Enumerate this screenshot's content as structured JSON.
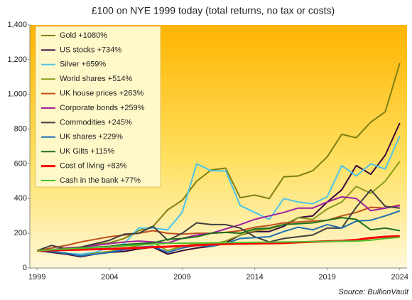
{
  "chart_data": {
    "type": "line",
    "title": "£100 on NYE 1999 today (total returns, no tax or costs)",
    "source": "Source: BullionVault",
    "x": [
      1999,
      2000,
      2001,
      2002,
      2003,
      2004,
      2005,
      2006,
      2007,
      2008,
      2009,
      2010,
      2011,
      2012,
      2013,
      2014,
      2015,
      2016,
      2017,
      2018,
      2019,
      2020,
      2021,
      2022,
      2023,
      2024
    ],
    "xlim": [
      1998.5,
      2024.5
    ],
    "xticks": [
      1999,
      2004,
      2009,
      2014,
      2019,
      2024
    ],
    "ylim": [
      0,
      1400
    ],
    "yticks": [
      0,
      200,
      400,
      600,
      800,
      {
        "value": 1000,
        "label": "1,000"
      },
      {
        "value": 1200,
        "label": "1,200"
      },
      {
        "value": 1400,
        "label": "1,400"
      }
    ],
    "legend": "upper left",
    "series": [
      {
        "name": "Gold +1080%",
        "color": "#7f7f10",
        "values": [
          100,
          100,
          105,
          115,
          135,
          145,
          170,
          215,
          240,
          335,
          390,
          500,
          565,
          575,
          405,
          420,
          400,
          525,
          530,
          560,
          640,
          770,
          750,
          840,
          900,
          1180
        ]
      },
      {
        "name": "US stocks +734%",
        "color": "#3a0a3a",
        "values": [
          100,
          90,
          80,
          65,
          80,
          90,
          95,
          110,
          120,
          80,
          100,
          115,
          125,
          145,
          190,
          210,
          210,
          240,
          290,
          300,
          380,
          450,
          590,
          540,
          650,
          835
        ]
      },
      {
        "name": "Silver +659%",
        "color": "#4ec3e8",
        "values": [
          100,
          95,
          85,
          80,
          90,
          120,
          140,
          230,
          230,
          220,
          320,
          600,
          560,
          560,
          360,
          320,
          280,
          400,
          380,
          370,
          410,
          590,
          530,
          600,
          570,
          760
        ]
      },
      {
        "name": "World shares +514%",
        "color": "#8a9a1e",
        "values": [
          100,
          95,
          85,
          70,
          85,
          95,
          110,
          130,
          145,
          100,
          125,
          140,
          135,
          155,
          190,
          215,
          225,
          250,
          290,
          280,
          340,
          380,
          470,
          430,
          500,
          614
        ]
      },
      {
        "name": "UK house prices +263%",
        "color": "#c0501e",
        "values": [
          100,
          115,
          130,
          150,
          165,
          180,
          190,
          200,
          215,
          200,
          195,
          200,
          200,
          205,
          215,
          235,
          245,
          260,
          265,
          270,
          275,
          300,
          320,
          350,
          345,
          363
        ]
      },
      {
        "name": "Corporate bonds +259%",
        "color": "#a020a0",
        "values": [
          100,
          105,
          115,
          120,
          130,
          140,
          150,
          155,
          150,
          145,
          170,
          190,
          200,
          225,
          250,
          280,
          300,
          320,
          345,
          345,
          380,
          410,
          400,
          330,
          345,
          359
        ]
      },
      {
        "name": "Commodities +245%",
        "color": "#404040",
        "values": [
          100,
          130,
          110,
          120,
          140,
          160,
          195,
          200,
          240,
          160,
          200,
          260,
          250,
          250,
          230,
          180,
          150,
          170,
          180,
          190,
          230,
          230,
          350,
          450,
          355,
          345
        ]
      },
      {
        "name": "UK shares +229%",
        "color": "#1f6fb4",
        "values": [
          100,
          95,
          85,
          70,
          80,
          90,
          105,
          120,
          125,
          90,
          115,
          130,
          125,
          140,
          170,
          175,
          180,
          210,
          235,
          220,
          250,
          230,
          270,
          275,
          300,
          329
        ]
      },
      {
        "name": "UK Gilts +115%",
        "color": "#1e6e1e",
        "values": [
          100,
          105,
          110,
          115,
          120,
          125,
          135,
          140,
          145,
          165,
          170,
          180,
          200,
          205,
          200,
          225,
          230,
          250,
          255,
          260,
          275,
          290,
          280,
          220,
          230,
          215
        ]
      },
      {
        "name": "Cost of living +83%",
        "color": "#ff0000",
        "values": [
          100,
          102,
          104,
          106,
          108,
          110,
          113,
          116,
          120,
          123,
          127,
          131,
          135,
          138,
          140,
          141,
          142,
          144,
          148,
          151,
          154,
          156,
          162,
          173,
          180,
          183
        ]
      },
      {
        "name": "Cash in the bank +77%",
        "color": "#50c030",
        "values": [
          100,
          105,
          110,
          114,
          118,
          122,
          127,
          132,
          138,
          142,
          143,
          144,
          145,
          146,
          147,
          148,
          149,
          150,
          151,
          152,
          153,
          154,
          155,
          160,
          170,
          177
        ]
      }
    ]
  }
}
